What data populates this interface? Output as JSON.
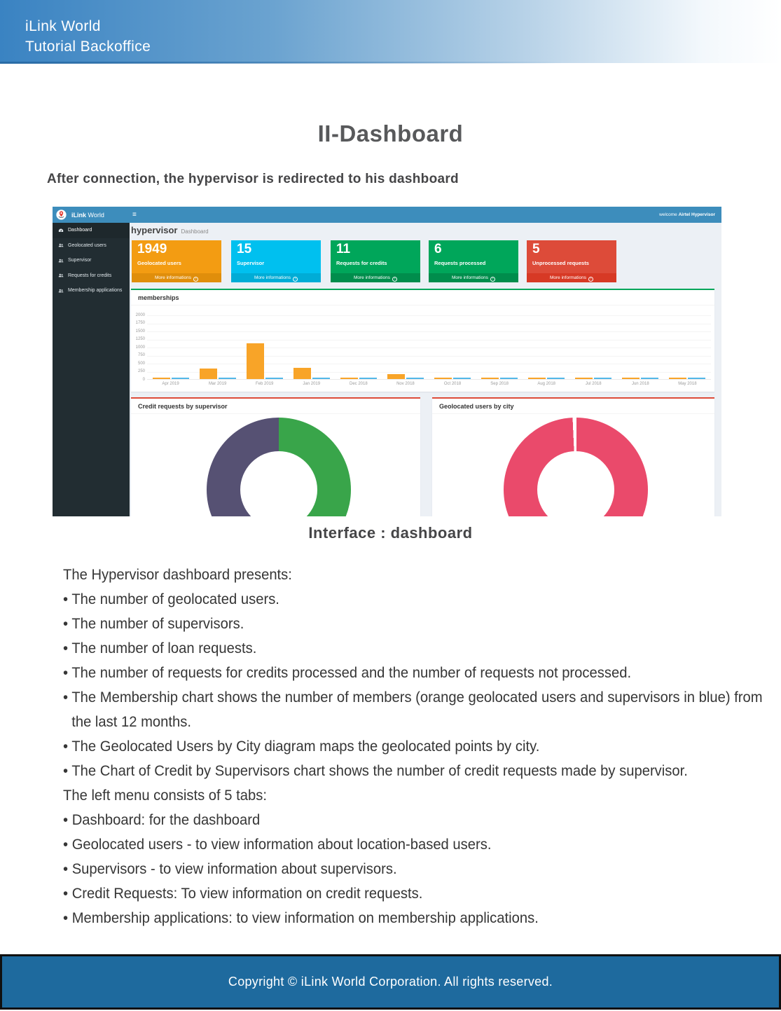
{
  "header": {
    "line1": "iLink World",
    "line2": "Tutorial Backoffice"
  },
  "doc": {
    "title": "II-Dashboard",
    "intro": "After connection, the hypervisor is redirected to his dashboard",
    "caption": "Interface : dashboard",
    "body_lines": [
      "The Hypervisor dashboard presents:",
      "• The number of geolocated users.",
      "• The number of supervisors.",
      "• The number of loan requests.",
      "• The number of requests for credits processed and the number of requests not processed.",
      "• The Membership chart shows the number of members (orange geolocated users and supervisors in blue) from the last 12 months.",
      "• The Geolocated Users by City diagram maps the geolocated points by city.",
      "• The Chart of Credit by Supervisors chart shows the number of credit requests made by supervisor.",
      "The left menu consists of 5 tabs:",
      "• Dashboard: for the dashboard",
      "• Geolocated users - to view information about location-based users.",
      "• Supervisors - to view information about supervisors.",
      "• Credit Requests: To view information on credit requests.",
      "• Membership applications: to view information on membership applications."
    ],
    "footer": "Copyright © iLink World Corporation. All rights reserved."
  },
  "dashboard": {
    "brand_bold": "iLink",
    "brand_regular": "World",
    "welcome_prefix": "welcome",
    "welcome_user": "Airtel Hypervisor",
    "page_title": "hypervisor",
    "page_subtitle": "Dashboard",
    "colors": {
      "navbar": "#3d8dbc",
      "sidebar": "#222d32",
      "content_bg": "#ecf0f5"
    },
    "icons": {
      "menu_toggle": "≡",
      "more_arrow": "›"
    },
    "sidebar_items": [
      {
        "icon": "gauge-icon",
        "label": "Dashboard",
        "active": true
      },
      {
        "icon": "users-icon",
        "label": "Geolocated users",
        "active": false
      },
      {
        "icon": "users-icon",
        "label": "Supervisor",
        "active": false
      },
      {
        "icon": "users-icon",
        "label": "Requests for credits",
        "active": false
      },
      {
        "icon": "users-icon",
        "label": "Membership applications",
        "active": false
      }
    ],
    "cards": [
      {
        "value": "1949",
        "label": "Geolocated users",
        "more": "More informations",
        "color": "#f39c12",
        "footer_color": "#e08e0b"
      },
      {
        "value": "15",
        "label": "Supervisor",
        "more": "More informations",
        "color": "#00c0ef",
        "footer_color": "#00acd6"
      },
      {
        "value": "11",
        "label": "Requests for credits",
        "more": "More informations",
        "color": "#00a65a",
        "footer_color": "#008d4c"
      },
      {
        "value": "6",
        "label": "Requests processed",
        "more": "More informations",
        "color": "#00a65a",
        "footer_color": "#008d4c"
      },
      {
        "value": "5",
        "label": "Unprocessed requests",
        "more": "More informations",
        "color": "#dd4b39",
        "footer_color": "#d73925"
      }
    ]
  },
  "chart_data": [
    {
      "type": "bar",
      "title": "memberships",
      "categories": [
        "Apr 2019",
        "Mar 2019",
        "Feb 2019",
        "Jan 2019",
        "Dec 2018",
        "Nov 2018",
        "Oct 2018",
        "Sep 2018",
        "Aug 2018",
        "Jul 2018",
        "Jun 2018",
        "May 2018"
      ],
      "series": [
        {
          "name": "geolocated users (orange)",
          "color": "#f8a428",
          "values": [
            15,
            320,
            1110,
            350,
            15,
            150,
            15,
            15,
            15,
            15,
            15,
            15
          ]
        },
        {
          "name": "supervisors (blue)",
          "color": "#52b7e8",
          "values": [
            12,
            12,
            12,
            30,
            14,
            12,
            14,
            14,
            14,
            14,
            14,
            12
          ]
        }
      ],
      "xlabel": "",
      "ylabel": "",
      "ylim": [
        0,
        2000
      ],
      "yticks": [
        0,
        250,
        500,
        750,
        1000,
        1250,
        1500,
        1750,
        2000
      ],
      "grid": true,
      "legend_position": "none"
    },
    {
      "type": "pie",
      "subtype": "donut",
      "title": "Credit requests by supervisor",
      "slices": [
        {
          "label": "",
          "value": 50,
          "color": "#39a54a"
        },
        {
          "label": "",
          "value": 50,
          "color": "#565173"
        }
      ]
    },
    {
      "type": "pie",
      "subtype": "donut",
      "title": "Geolocated users by city",
      "slices": [
        {
          "label": "",
          "value": 99.3,
          "color": "#ea4a6b"
        },
        {
          "label": "",
          "value": 0.7,
          "color": "#ffffff"
        }
      ]
    }
  ]
}
